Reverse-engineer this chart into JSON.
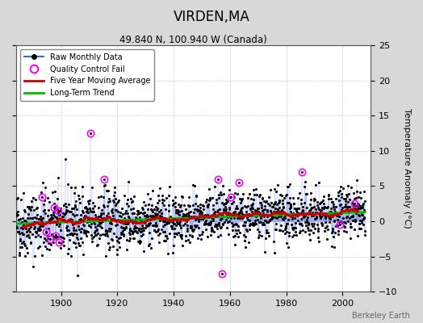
{
  "title": "VIRDEN,MA",
  "subtitle": "49.840 N, 100.940 W (Canada)",
  "ylabel": "Temperature Anomaly (°C)",
  "watermark": "Berkeley Earth",
  "xlim": [
    1884,
    2010
  ],
  "ylim": [
    -10,
    25
  ],
  "yticks": [
    -10,
    -5,
    0,
    5,
    10,
    15,
    20,
    25
  ],
  "xticks": [
    1900,
    1920,
    1940,
    1960,
    1980,
    2000
  ],
  "bg_color": "#d8d8d8",
  "plot_bg_color": "#ffffff",
  "seed": 42,
  "start_year": 1884,
  "end_year": 2008,
  "raw_line_color": "#4466dd",
  "raw_line_alpha": 0.7,
  "raw_dot_color": "#000000",
  "qc_color": "#ff00ff",
  "moving_avg_color": "#cc0000",
  "trend_color": "#00bb00",
  "legend_entries": [
    "Raw Monthly Data",
    "Quality Control Fail",
    "Five Year Moving Average",
    "Long-Term Trend"
  ],
  "qc_years": [
    1893,
    1894,
    1896,
    1897,
    1898,
    1898,
    1899,
    1910,
    1915,
    1955,
    1957,
    1960,
    1963,
    1985,
    1999,
    2004
  ],
  "qc_months": [
    3,
    8,
    1,
    5,
    0,
    10,
    2,
    6,
    3,
    8,
    0,
    4,
    2,
    7,
    1,
    0
  ],
  "qc_values": [
    3.5,
    -1.5,
    -2.5,
    2.0,
    -2.0,
    1.5,
    -3.0,
    12.5,
    6.0,
    6.0,
    -7.5,
    3.5,
    5.5,
    7.0,
    -0.5,
    2.5
  ]
}
